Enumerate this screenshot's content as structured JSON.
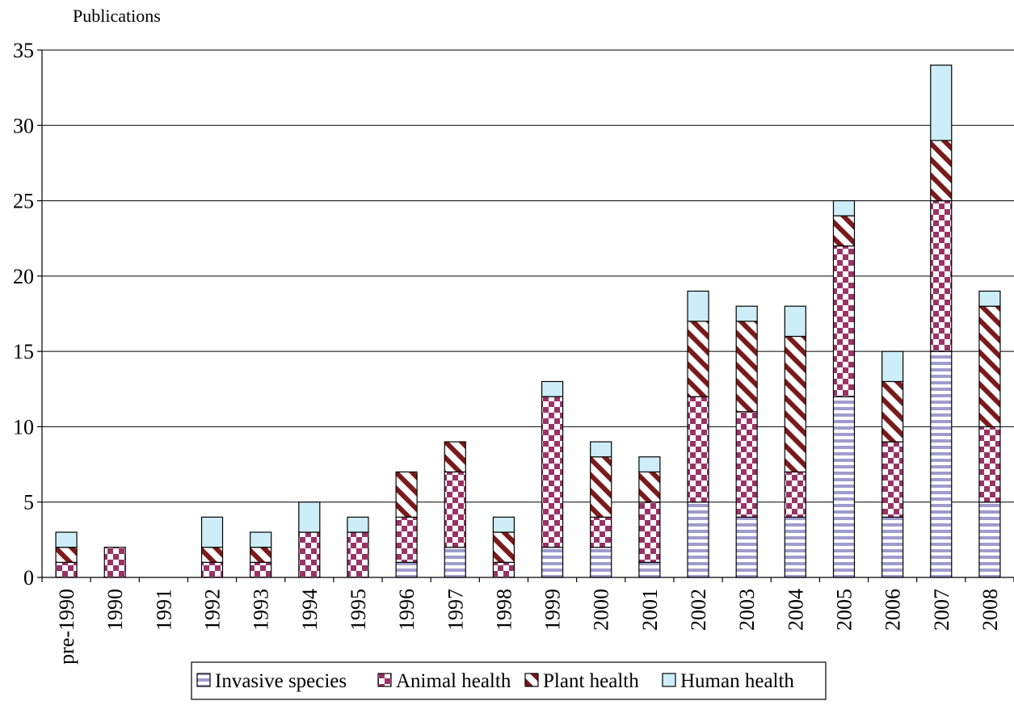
{
  "chart_data": {
    "type": "bar",
    "stacked": true,
    "ylabel": "Publications",
    "xlabel": "",
    "ylim": [
      0,
      35
    ],
    "yticks": [
      0,
      5,
      10,
      15,
      20,
      25,
      30,
      35
    ],
    "grid": true,
    "legend_position": "bottom",
    "categories": [
      "pre-1990",
      "1990",
      "1991",
      "1992",
      "1993",
      "1994",
      "1995",
      "1996",
      "1997",
      "1998",
      "1999",
      "2000",
      "2001",
      "2002",
      "2003",
      "2004",
      "2005",
      "2006",
      "2007",
      "2008"
    ],
    "series": [
      {
        "name": "Invasive species",
        "pattern": "horizontal-stripes",
        "color": "#9e9ccc",
        "values": [
          0,
          0,
          0,
          0,
          0,
          0,
          0,
          1,
          2,
          0,
          2,
          2,
          1,
          5,
          4,
          4,
          12,
          4,
          15,
          5
        ]
      },
      {
        "name": "Animal health",
        "pattern": "checkerboard",
        "color": "#993366",
        "values": [
          1,
          2,
          0,
          1,
          1,
          3,
          3,
          3,
          5,
          1,
          10,
          2,
          4,
          7,
          7,
          3,
          10,
          5,
          10,
          5
        ]
      },
      {
        "name": "Plant health",
        "pattern": "diagonal-stripes",
        "color": "#7a1a1a",
        "values": [
          1,
          0,
          0,
          1,
          1,
          0,
          0,
          3,
          2,
          2,
          0,
          4,
          2,
          5,
          6,
          9,
          2,
          4,
          4,
          8
        ]
      },
      {
        "name": "Human health",
        "pattern": "solid",
        "color": "#cdeef8",
        "values": [
          1,
          0,
          0,
          2,
          1,
          2,
          1,
          0,
          0,
          1,
          1,
          1,
          1,
          2,
          1,
          2,
          1,
          2,
          5,
          1
        ]
      }
    ]
  }
}
